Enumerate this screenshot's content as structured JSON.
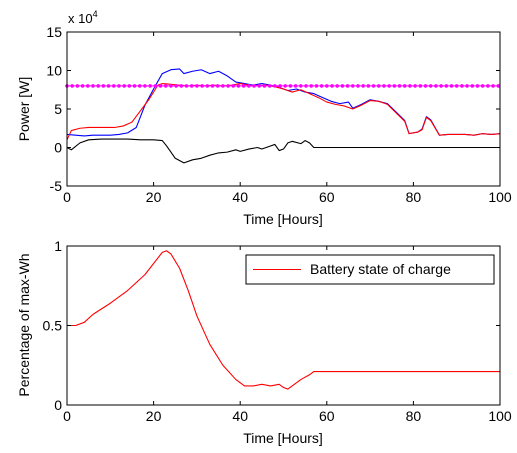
{
  "chart_data": [
    {
      "type": "line",
      "xlabel": "Time [Hours]",
      "ylabel": "Power [W]",
      "exponent_label": "x 10",
      "exponent_power": "4",
      "xlim": [
        0,
        100
      ],
      "ylim": [
        -5,
        15
      ],
      "y_scale_factor": 10000,
      "xticks": [
        0,
        20,
        40,
        60,
        80,
        100
      ],
      "yticks": [
        -5,
        0,
        5,
        10,
        15
      ],
      "grid": false,
      "series": [
        {
          "color": "#0000ff",
          "style": "solid",
          "points": [
            [
              0,
              1.7
            ],
            [
              2,
              1.6
            ],
            [
              4,
              1.5
            ],
            [
              6,
              1.6
            ],
            [
              8,
              1.6
            ],
            [
              10,
              1.6
            ],
            [
              12,
              1.7
            ],
            [
              14,
              1.9
            ],
            [
              16,
              2.6
            ],
            [
              18,
              5.5
            ],
            [
              20,
              7.6
            ],
            [
              22,
              9.6
            ],
            [
              24,
              10.1
            ],
            [
              26,
              10.2
            ],
            [
              27,
              9.6
            ],
            [
              29,
              9.9
            ],
            [
              31,
              10.1
            ],
            [
              33,
              9.6
            ],
            [
              35,
              9.9
            ],
            [
              37,
              9.3
            ],
            [
              39,
              8.5
            ],
            [
              41,
              8.3
            ],
            [
              43,
              8.1
            ],
            [
              45,
              8.3
            ],
            [
              47,
              8.1
            ],
            [
              49,
              7.8
            ],
            [
              51,
              7.4
            ],
            [
              53,
              7.6
            ],
            [
              55,
              7.2
            ],
            [
              57,
              7.0
            ],
            [
              59,
              6.5
            ],
            [
              61,
              6.0
            ],
            [
              63,
              5.7
            ],
            [
              65,
              5.9
            ],
            [
              66,
              5.1
            ],
            [
              68,
              5.6
            ],
            [
              70,
              6.2
            ],
            [
              72,
              6.0
            ],
            [
              74,
              5.7
            ],
            [
              76,
              4.6
            ],
            [
              78,
              3.5
            ],
            [
              79,
              1.8
            ],
            [
              81,
              2.0
            ],
            [
              82,
              2.4
            ],
            [
              83,
              4.0
            ],
            [
              84,
              3.6
            ],
            [
              86,
              1.6
            ],
            [
              88,
              1.7
            ],
            [
              90,
              1.7
            ],
            [
              92,
              1.7
            ],
            [
              94,
              1.6
            ],
            [
              96,
              1.8
            ],
            [
              98,
              1.7
            ],
            [
              100,
              1.8
            ]
          ]
        },
        {
          "color": "#ff0000",
          "style": "solid",
          "points": [
            [
              0,
              1.0
            ],
            [
              1,
              2.2
            ],
            [
              3,
              2.5
            ],
            [
              5,
              2.6
            ],
            [
              8,
              2.6
            ],
            [
              11,
              2.6
            ],
            [
              13,
              2.8
            ],
            [
              15,
              3.3
            ],
            [
              17,
              4.8
            ],
            [
              19,
              6.3
            ],
            [
              21,
              8.1
            ],
            [
              22,
              8.3
            ],
            [
              24,
              8.2
            ],
            [
              26,
              8.1
            ],
            [
              28,
              8.0
            ],
            [
              30,
              8.1
            ],
            [
              32,
              8.0
            ],
            [
              34,
              8.1
            ],
            [
              36,
              8.0
            ],
            [
              38,
              8.1
            ],
            [
              40,
              8.3
            ],
            [
              43,
              8.0
            ],
            [
              46,
              8.1
            ],
            [
              48,
              7.9
            ],
            [
              50,
              7.6
            ],
            [
              52,
              7.2
            ],
            [
              54,
              7.5
            ],
            [
              56,
              7.0
            ],
            [
              58,
              6.5
            ],
            [
              60,
              5.9
            ],
            [
              62,
              5.6
            ],
            [
              64,
              5.4
            ],
            [
              66,
              5.0
            ],
            [
              68,
              5.5
            ],
            [
              70,
              6.1
            ],
            [
              72,
              6.0
            ],
            [
              74,
              5.6
            ],
            [
              76,
              4.5
            ],
            [
              78,
              3.4
            ],
            [
              79,
              1.8
            ],
            [
              81,
              2.0
            ],
            [
              82,
              2.3
            ],
            [
              83,
              3.9
            ],
            [
              84,
              3.5
            ],
            [
              86,
              1.6
            ],
            [
              88,
              1.7
            ],
            [
              90,
              1.7
            ],
            [
              92,
              1.7
            ],
            [
              94,
              1.6
            ],
            [
              96,
              1.8
            ],
            [
              98,
              1.7
            ],
            [
              100,
              1.8
            ]
          ]
        },
        {
          "color": "#000000",
          "style": "solid",
          "points": [
            [
              0,
              0
            ],
            [
              1,
              -0.3
            ],
            [
              3,
              0.6
            ],
            [
              5,
              1.0
            ],
            [
              8,
              1.1
            ],
            [
              11,
              1.1
            ],
            [
              14,
              1.1
            ],
            [
              17,
              1.0
            ],
            [
              20,
              1.0
            ],
            [
              22,
              0.9
            ],
            [
              23,
              0.2
            ],
            [
              24,
              -0.6
            ],
            [
              25,
              -1.4
            ],
            [
              27,
              -2.0
            ],
            [
              29,
              -1.6
            ],
            [
              31,
              -1.4
            ],
            [
              33,
              -1.0
            ],
            [
              35,
              -0.7
            ],
            [
              37,
              -0.6
            ],
            [
              39,
              -0.3
            ],
            [
              40,
              -0.5
            ],
            [
              42,
              -0.2
            ],
            [
              44,
              0.0
            ],
            [
              45,
              -0.2
            ],
            [
              47,
              0.2
            ],
            [
              48,
              0.4
            ],
            [
              49,
              -0.4
            ],
            [
              50,
              -0.2
            ],
            [
              51,
              0.6
            ],
            [
              52,
              0.8
            ],
            [
              54,
              0.5
            ],
            [
              55,
              0.9
            ],
            [
              56,
              0.6
            ],
            [
              57,
              0.0
            ],
            [
              60,
              0.0
            ],
            [
              70,
              0.0
            ],
            [
              80,
              0.0
            ],
            [
              90,
              0.0
            ],
            [
              100,
              0.0
            ]
          ]
        },
        {
          "color": "#ff00ff",
          "style": "dotted-markers",
          "constant": 8.0
        }
      ]
    },
    {
      "type": "line",
      "xlabel": "Time [Hours]",
      "ylabel": "Percentage of max-Wh",
      "xlim": [
        0,
        100
      ],
      "ylim": [
        0,
        1
      ],
      "xticks": [
        0,
        20,
        40,
        60,
        80,
        100
      ],
      "yticks": [
        0,
        0.5,
        1
      ],
      "ytick_labels": [
        "0",
        "0.5",
        "1"
      ],
      "grid": false,
      "legend": {
        "position": "top-right",
        "entries": [
          "Battery state of charge"
        ]
      },
      "series": [
        {
          "name": "Battery state of charge",
          "color": "#ff0000",
          "points": [
            [
              0,
              0.5
            ],
            [
              2,
              0.5
            ],
            [
              4,
              0.52
            ],
            [
              6,
              0.57
            ],
            [
              10,
              0.64
            ],
            [
              14,
              0.72
            ],
            [
              18,
              0.82
            ],
            [
              22,
              0.96
            ],
            [
              23,
              0.97
            ],
            [
              24,
              0.95
            ],
            [
              26,
              0.86
            ],
            [
              28,
              0.72
            ],
            [
              30,
              0.56
            ],
            [
              33,
              0.38
            ],
            [
              36,
              0.25
            ],
            [
              39,
              0.16
            ],
            [
              41,
              0.12
            ],
            [
              43,
              0.12
            ],
            [
              45,
              0.13
            ],
            [
              47,
              0.12
            ],
            [
              49,
              0.13
            ],
            [
              50,
              0.11
            ],
            [
              51,
              0.1
            ],
            [
              52,
              0.12
            ],
            [
              54,
              0.16
            ],
            [
              56,
              0.19
            ],
            [
              57,
              0.21
            ],
            [
              60,
              0.21
            ],
            [
              70,
              0.21
            ],
            [
              80,
              0.21
            ],
            [
              90,
              0.21
            ],
            [
              100,
              0.21
            ]
          ]
        }
      ]
    }
  ]
}
